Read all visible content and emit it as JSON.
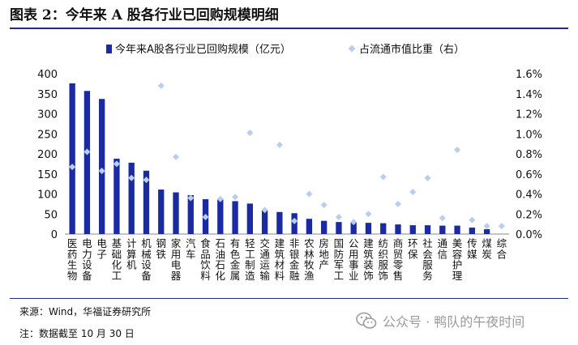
{
  "title": "图表 2：今年来 A 股各行业已回购规模明细",
  "source": "来源：Wind，华福证券研究所",
  "footnote": "注：数据截至 10 月 30 日",
  "watermark": "公众号 · 鸭队的午夜时间",
  "colors": {
    "bar": "#1a2aa0",
    "diamond": "#b9cdf0",
    "rule": "#1d2f7c"
  },
  "chart_data": {
    "type": "bar",
    "categories": [
      "医药生物",
      "电力设备",
      "电子",
      "基础化工",
      "计算机",
      "机械设备",
      "钢铁",
      "家用电器",
      "汽车",
      "食品饮料",
      "石油石化",
      "有色金属",
      "轻工制造",
      "交通运输",
      "建筑材料",
      "非银金融",
      "农林牧渔",
      "房地产",
      "国防军工",
      "公用事业",
      "建筑装饰",
      "纺织服饰",
      "商贸零售",
      "环保",
      "社会服务",
      "通信",
      "美容护理",
      "传媒",
      "煤炭",
      "综合"
    ],
    "series": [
      {
        "name": "今年来A股各行业已回购规模（亿元）",
        "type": "bar",
        "axis": "left",
        "values": [
          376,
          357,
          337,
          188,
          178,
          158,
          111,
          104,
          97,
          87,
          86,
          82,
          76,
          59,
          55,
          52,
          38,
          33,
          30,
          30,
          28,
          27,
          24,
          22,
          22,
          21,
          21,
          16,
          12,
          0
        ]
      },
      {
        "name": "占流通市值比重（右）",
        "type": "scatter",
        "axis": "right",
        "values": [
          0.67,
          0.82,
          0.63,
          0.7,
          0.56,
          0.54,
          1.48,
          0.77,
          0.36,
          0.17,
          0.35,
          0.37,
          1.01,
          0.24,
          0.89,
          0.13,
          0.4,
          0.29,
          0.17,
          0.12,
          0.2,
          0.57,
          0.3,
          0.42,
          0.56,
          0.16,
          0.84,
          0.14,
          0.08,
          0.08
        ]
      }
    ],
    "y_left": {
      "min": 0,
      "max": 400,
      "ticks": [
        0,
        50,
        100,
        150,
        200,
        250,
        300,
        350,
        400
      ]
    },
    "y_right": {
      "min": 0,
      "max": 1.6,
      "ticks": [
        "0.0%",
        "0.2%",
        "0.4%",
        "0.6%",
        "0.8%",
        "1.0%",
        "1.2%",
        "1.4%",
        "1.6%"
      ]
    },
    "legend_position": "top",
    "grid": false
  }
}
